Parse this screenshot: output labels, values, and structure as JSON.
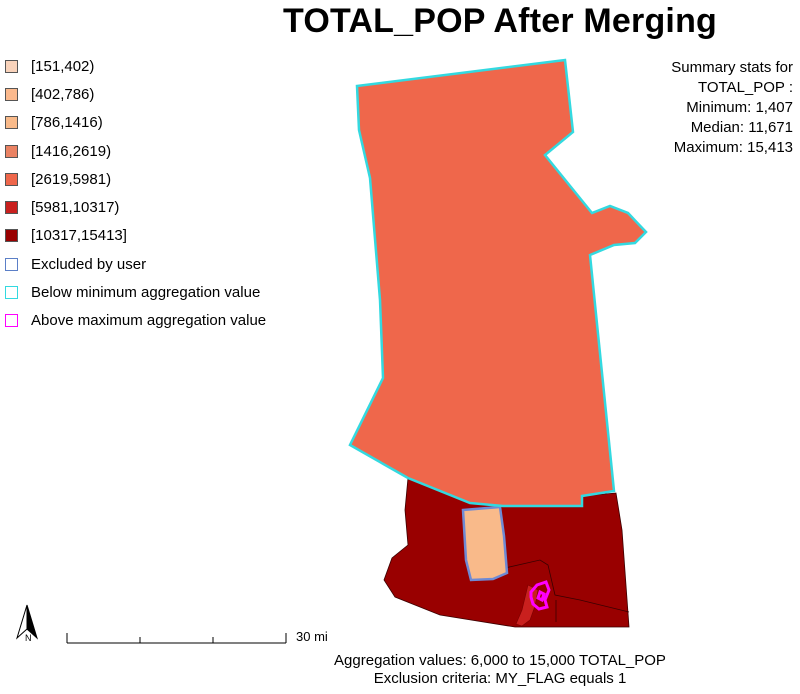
{
  "title": "TOTAL_POP After Merging",
  "legend": [
    {
      "label": "[151,402)",
      "color": "#f9d3bb",
      "type": "fill"
    },
    {
      "label": "[402,786)",
      "color": "#fbb98d",
      "type": "fill"
    },
    {
      "label": "[786,1416)",
      "color": "#f9ba8a",
      "type": "fill"
    },
    {
      "label": "[1416,2619)",
      "color": "#ea8263",
      "type": "fill"
    },
    {
      "label": "[2619,5981)",
      "color": "#ef674b",
      "type": "fill"
    },
    {
      "label": "[5981,10317)",
      "color": "#c9201e",
      "type": "fill"
    },
    {
      "label": "[10317,15413]",
      "color": "#990000",
      "type": "fill"
    },
    {
      "label": "Excluded by user",
      "color": "#5b7fc7",
      "type": "outline"
    },
    {
      "label": "Below minimum aggregation value",
      "color": "#33d9e0",
      "type": "outline"
    },
    {
      "label": "Above maximum aggregation value",
      "color": "#ff00ff",
      "type": "outline"
    }
  ],
  "stats": {
    "heading_line1": "Summary stats for",
    "heading_line2": "TOTAL_POP :",
    "minimum": "Minimum: 1,407",
    "median": "Median: 11,671",
    "maximum": "Maximum: 15,413"
  },
  "scalebar": {
    "label": "30 mi"
  },
  "north_arrow": {
    "label": "N",
    "icon": "north-arrow-icon"
  },
  "footer": {
    "line1": "Aggregation values: 6,000 to 15,000 TOTAL_POP",
    "line2": "Exclusion criteria:  MY_FLAG equals 1"
  }
}
